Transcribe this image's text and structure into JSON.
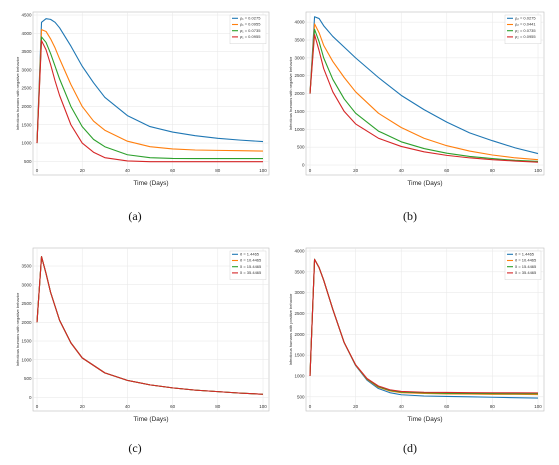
{
  "chart_data": [
    {
      "type": "line",
      "panel": "(a)",
      "ylabel": "Infectious humans with negative behavior",
      "xlabel": "Time (Days)",
      "xlim": [
        0,
        100
      ],
      "ylim": [
        400,
        4500
      ],
      "xticks": [
        0,
        20,
        40,
        60,
        80,
        100
      ],
      "yticks": [
        500,
        1000,
        1500,
        2000,
        2500,
        3000,
        3500,
        4000,
        4500
      ],
      "grid": true,
      "legend_position": "top-right",
      "colors": [
        "#1f77b4",
        "#ff7f0e",
        "#2ca02c",
        "#d62728"
      ],
      "series": [
        {
          "name": "ρ₁ = 0.0275",
          "x": [
            0,
            2,
            4,
            6,
            8,
            10,
            15,
            20,
            25,
            30,
            40,
            50,
            60,
            70,
            80,
            90,
            100
          ],
          "y": [
            1000,
            4300,
            4400,
            4380,
            4300,
            4150,
            3650,
            3100,
            2650,
            2250,
            1750,
            1450,
            1300,
            1200,
            1130,
            1080,
            1040
          ]
        },
        {
          "name": "ρ₁ = 0.0955",
          "x": [
            0,
            2,
            4,
            6,
            8,
            10,
            15,
            20,
            25,
            30,
            40,
            50,
            60,
            70,
            80,
            90,
            100
          ],
          "y": [
            1000,
            4100,
            4050,
            3850,
            3600,
            3300,
            2600,
            2000,
            1600,
            1350,
            1050,
            900,
            840,
            810,
            800,
            790,
            780
          ]
        },
        {
          "name": "ρ₁ = 0.0735",
          "x": [
            0,
            2,
            4,
            6,
            8,
            10,
            15,
            20,
            25,
            30,
            40,
            50,
            60,
            70,
            80,
            90,
            100
          ],
          "y": [
            1000,
            3900,
            3750,
            3450,
            3100,
            2750,
            2000,
            1450,
            1100,
            900,
            680,
            600,
            580,
            575,
            575,
            575,
            575
          ]
        },
        {
          "name": "ρ₁ = 0.0955",
          "x": [
            0,
            2,
            4,
            6,
            8,
            10,
            15,
            20,
            25,
            30,
            40,
            50,
            60,
            70,
            80,
            90,
            100
          ],
          "y": [
            1000,
            3800,
            3550,
            3150,
            2700,
            2300,
            1500,
            1000,
            750,
            600,
            510,
            490,
            490,
            490,
            490,
            490,
            490
          ]
        }
      ]
    },
    {
      "type": "line",
      "panel": "(b)",
      "ylabel": "Infectious humans with negative behavior",
      "xlabel": "Time (Days)",
      "xlim": [
        0,
        100
      ],
      "ylim": [
        0,
        4200
      ],
      "xticks": [
        0,
        20,
        40,
        60,
        80,
        100
      ],
      "yticks": [
        0,
        500,
        1000,
        1500,
        2000,
        2500,
        3000,
        3500,
        4000
      ],
      "grid": true,
      "legend_position": "top-right",
      "colors": [
        "#1f77b4",
        "#ff7f0e",
        "#2ca02c",
        "#d62728"
      ],
      "series": [
        {
          "name": "ρ₂ = 0.0275",
          "x": [
            0,
            2,
            4,
            6,
            10,
            15,
            20,
            30,
            40,
            50,
            60,
            70,
            80,
            90,
            100
          ],
          "y": [
            2000,
            4150,
            4100,
            3900,
            3600,
            3300,
            3000,
            2450,
            1950,
            1550,
            1200,
            900,
            680,
            480,
            320
          ]
        },
        {
          "name": "ρ₂ = 0.0441",
          "x": [
            0,
            2,
            4,
            6,
            10,
            15,
            20,
            30,
            40,
            50,
            60,
            70,
            80,
            90,
            100
          ],
          "y": [
            2000,
            3950,
            3700,
            3350,
            2900,
            2450,
            2050,
            1450,
            1050,
            750,
            540,
            390,
            280,
            200,
            150
          ]
        },
        {
          "name": "ρ₂ = 0.0735",
          "x": [
            0,
            2,
            4,
            6,
            10,
            15,
            20,
            30,
            40,
            50,
            60,
            70,
            80,
            90,
            100
          ],
          "y": [
            2000,
            3800,
            3450,
            3000,
            2400,
            1850,
            1450,
            950,
            650,
            460,
            330,
            240,
            180,
            130,
            100
          ]
        },
        {
          "name": "ρ₂ = 0.0955",
          "x": [
            0,
            2,
            4,
            6,
            10,
            15,
            20,
            30,
            40,
            50,
            60,
            70,
            80,
            90,
            100
          ],
          "y": [
            2000,
            3650,
            3200,
            2700,
            2050,
            1500,
            1150,
            750,
            520,
            370,
            270,
            200,
            150,
            110,
            80
          ]
        }
      ]
    },
    {
      "type": "line",
      "panel": "(c)",
      "ylabel": "Infectious humans with negative behavior",
      "xlabel": "Time (Days)",
      "xlim": [
        0,
        100
      ],
      "ylim": [
        -100,
        3900
      ],
      "xticks": [
        0,
        20,
        40,
        60,
        80,
        100
      ],
      "yticks": [
        0,
        500,
        1000,
        1500,
        2000,
        2500,
        3000,
        3500
      ],
      "grid": true,
      "legend_position": "top-right",
      "colors": [
        "#1f77b4",
        "#ff7f0e",
        "#2ca02c",
        "#d62728"
      ],
      "series": [
        {
          "name": "δ = 1.4465",
          "x": [
            0,
            2,
            4,
            6,
            10,
            15,
            20,
            30,
            40,
            50,
            60,
            70,
            80,
            90,
            100
          ],
          "y": [
            2000,
            3750,
            3300,
            2800,
            2050,
            1450,
            1050,
            650,
            450,
            330,
            250,
            190,
            150,
            110,
            80
          ]
        },
        {
          "name": "δ = 10.4465",
          "x": [
            0,
            2,
            4,
            6,
            10,
            15,
            20,
            30,
            40,
            50,
            60,
            70,
            80,
            90,
            100
          ],
          "y": [
            2000,
            3750,
            3300,
            2800,
            2050,
            1450,
            1050,
            650,
            450,
            330,
            250,
            190,
            150,
            110,
            80
          ]
        },
        {
          "name": "δ = 15.4465",
          "x": [
            0,
            2,
            4,
            6,
            10,
            15,
            20,
            30,
            40,
            50,
            60,
            70,
            80,
            90,
            100
          ],
          "y": [
            2000,
            3750,
            3300,
            2800,
            2050,
            1450,
            1050,
            650,
            450,
            330,
            250,
            190,
            150,
            110,
            80
          ]
        },
        {
          "name": "δ = 35.4465",
          "x": [
            0,
            2,
            4,
            6,
            10,
            15,
            20,
            30,
            40,
            50,
            60,
            70,
            80,
            90,
            100
          ],
          "y": [
            2000,
            3750,
            3300,
            2800,
            2050,
            1450,
            1050,
            650,
            450,
            330,
            250,
            190,
            150,
            110,
            80
          ]
        }
      ]
    },
    {
      "type": "line",
      "panel": "(d)",
      "ylabel": "Infectious humans with positive behavior",
      "xlabel": "Time (Days)",
      "xlim": [
        0,
        100
      ],
      "ylim": [
        400,
        4000
      ],
      "xticks": [
        0,
        20,
        40,
        60,
        80,
        100
      ],
      "yticks": [
        500,
        1000,
        1500,
        2000,
        2500,
        3000,
        3500,
        4000
      ],
      "grid": true,
      "legend_position": "top-right",
      "colors": [
        "#1f77b4",
        "#ff7f0e",
        "#2ca02c",
        "#d62728"
      ],
      "series": [
        {
          "name": "δ = 1.4465",
          "x": [
            0,
            2,
            4,
            6,
            10,
            15,
            20,
            25,
            30,
            35,
            40,
            50,
            60,
            70,
            80,
            90,
            100
          ],
          "y": [
            1000,
            3800,
            3600,
            3300,
            2600,
            1800,
            1250,
            900,
            700,
            600,
            550,
            520,
            510,
            500,
            490,
            480,
            470
          ]
        },
        {
          "name": "δ = 10.4465",
          "x": [
            0,
            2,
            4,
            6,
            10,
            15,
            20,
            25,
            30,
            35,
            40,
            50,
            60,
            70,
            80,
            90,
            100
          ],
          "y": [
            1000,
            3800,
            3600,
            3300,
            2600,
            1800,
            1260,
            920,
            730,
            640,
            600,
            580,
            570,
            565,
            560,
            560,
            555
          ]
        },
        {
          "name": "δ = 15.4465",
          "x": [
            0,
            2,
            4,
            6,
            10,
            15,
            20,
            25,
            30,
            35,
            40,
            50,
            60,
            70,
            80,
            90,
            100
          ],
          "y": [
            1000,
            3800,
            3600,
            3300,
            2600,
            1800,
            1265,
            930,
            745,
            655,
            615,
            595,
            585,
            580,
            578,
            576,
            575
          ]
        },
        {
          "name": "δ = 35.4465",
          "x": [
            0,
            2,
            4,
            6,
            10,
            15,
            20,
            25,
            30,
            35,
            40,
            50,
            60,
            70,
            80,
            90,
            100
          ],
          "y": [
            1000,
            3800,
            3600,
            3300,
            2600,
            1800,
            1270,
            940,
            760,
            670,
            630,
            610,
            605,
            600,
            598,
            596,
            595
          ]
        }
      ]
    }
  ]
}
